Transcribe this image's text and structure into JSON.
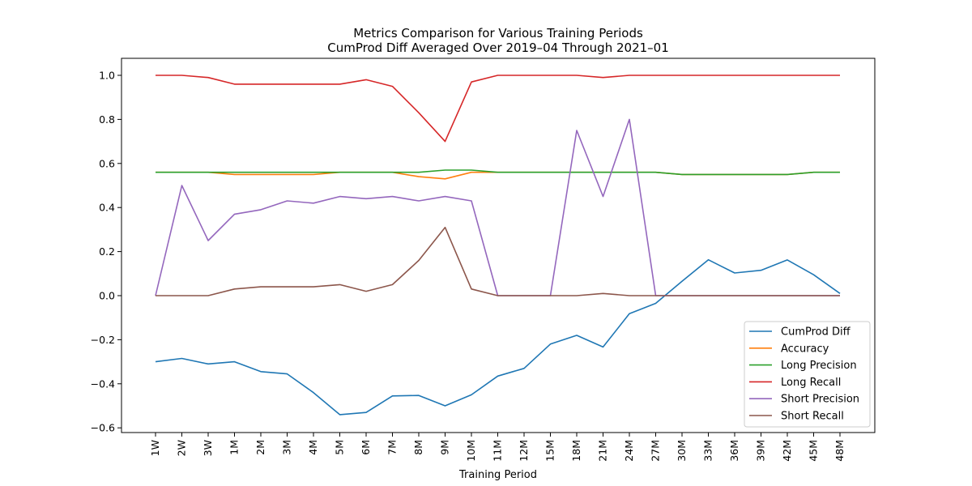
{
  "chart_data": {
    "type": "line",
    "title": "Metrics Comparison for Various Training Periods",
    "subtitle": "CumProd Diff Averaged Over 2019–04 Through 2021–01",
    "xlabel": "Training Period",
    "ylabel": "",
    "ylim": [
      -0.62,
      1.07
    ],
    "yticks": [
      "−0.6",
      "−0.4",
      "−0.2",
      "0.0",
      "0.2",
      "0.4",
      "0.6",
      "0.8",
      "1.0"
    ],
    "ytick_values": [
      -0.6,
      -0.4,
      -0.2,
      0.0,
      0.2,
      0.4,
      0.6,
      0.8,
      1.0
    ],
    "grid": false,
    "legend_position": "lower-right",
    "categories": [
      "1W",
      "2W",
      "3W",
      "1M",
      "2M",
      "3M",
      "4M",
      "5M",
      "6M",
      "7M",
      "8M",
      "9M",
      "10M",
      "11M",
      "12M",
      "15M",
      "18M",
      "21M",
      "24M",
      "27M",
      "30M",
      "33M",
      "36M",
      "39M",
      "42M",
      "45M",
      "48M"
    ],
    "series": [
      {
        "name": "CumProd Diff",
        "color": "#1f77b4",
        "values": [
          -0.3,
          -0.285,
          -0.31,
          -0.3,
          -0.345,
          -0.355,
          -0.44,
          -0.54,
          -0.53,
          -0.455,
          -0.453,
          -0.5,
          -0.45,
          -0.365,
          -0.33,
          -0.22,
          -0.18,
          -0.233,
          -0.082,
          -0.035,
          0.065,
          0.163,
          0.103,
          0.115,
          0.162,
          0.095,
          0.01
        ]
      },
      {
        "name": "Accuracy",
        "color": "#ff7f0e",
        "values": [
          0.56,
          0.56,
          0.56,
          0.55,
          0.55,
          0.55,
          0.55,
          0.56,
          0.56,
          0.56,
          0.54,
          0.53,
          0.56,
          0.56,
          0.56,
          0.56,
          0.56,
          0.56,
          0.56,
          0.56,
          0.55,
          0.55,
          0.55,
          0.55,
          0.55,
          0.56,
          0.56
        ]
      },
      {
        "name": "Long Precision",
        "color": "#2ca02c",
        "values": [
          0.56,
          0.56,
          0.56,
          0.56,
          0.56,
          0.56,
          0.56,
          0.56,
          0.56,
          0.56,
          0.56,
          0.57,
          0.57,
          0.56,
          0.56,
          0.56,
          0.56,
          0.56,
          0.56,
          0.56,
          0.55,
          0.55,
          0.55,
          0.55,
          0.55,
          0.56,
          0.56
        ]
      },
      {
        "name": "Long Recall",
        "color": "#d62728",
        "values": [
          1.0,
          1.0,
          0.99,
          0.96,
          0.96,
          0.96,
          0.96,
          0.96,
          0.98,
          0.95,
          0.83,
          0.7,
          0.97,
          1.0,
          1.0,
          1.0,
          1.0,
          0.99,
          1.0,
          1.0,
          1.0,
          1.0,
          1.0,
          1.0,
          1.0,
          1.0,
          1.0
        ]
      },
      {
        "name": "Short Precision",
        "color": "#9467bd",
        "values": [
          0.0,
          0.5,
          0.25,
          0.37,
          0.39,
          0.43,
          0.42,
          0.45,
          0.44,
          0.45,
          0.43,
          0.45,
          0.43,
          0.0,
          0.0,
          0.0,
          0.75,
          0.45,
          0.8,
          0.0,
          0.0,
          0.0,
          0.0,
          0.0,
          0.0,
          0.0,
          0.0
        ]
      },
      {
        "name": "Short Recall",
        "color": "#8c564b",
        "values": [
          0.0,
          0.0,
          0.0,
          0.03,
          0.04,
          0.04,
          0.04,
          0.05,
          0.02,
          0.05,
          0.16,
          0.31,
          0.03,
          0.0,
          0.0,
          0.0,
          0.0,
          0.01,
          0.0,
          0.0,
          0.0,
          0.0,
          0.0,
          0.0,
          0.0,
          0.0,
          0.0
        ]
      }
    ]
  }
}
